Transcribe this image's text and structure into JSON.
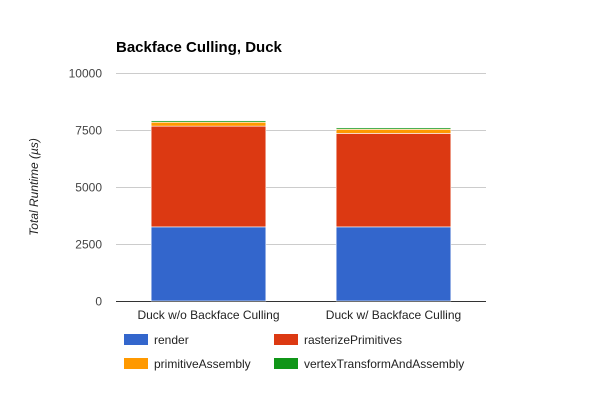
{
  "chart_data": {
    "type": "bar",
    "stacked": true,
    "title": "Backface Culling, Duck",
    "ylabel": "Total Runtime (µs)",
    "xlabel": "",
    "ylim": [
      0,
      10000
    ],
    "yticks": [
      0,
      2500,
      5000,
      7500,
      10000
    ],
    "grid": true,
    "legend_position": "bottom",
    "categories": [
      "Duck w/o Backface Culling",
      "Duck w/ Backface Culling"
    ],
    "series": [
      {
        "name": "render",
        "color": "#3366cc",
        "values": [
          3250,
          3250
        ]
      },
      {
        "name": "rasterizePrimitives",
        "color": "#dc3912",
        "values": [
          4420,
          4100
        ]
      },
      {
        "name": "primitiveAssembly",
        "color": "#ff9900",
        "values": [
          170,
          180
        ]
      },
      {
        "name": "vertexTransformAndAssembly",
        "color": "#109618",
        "values": [
          60,
          60
        ]
      }
    ]
  }
}
